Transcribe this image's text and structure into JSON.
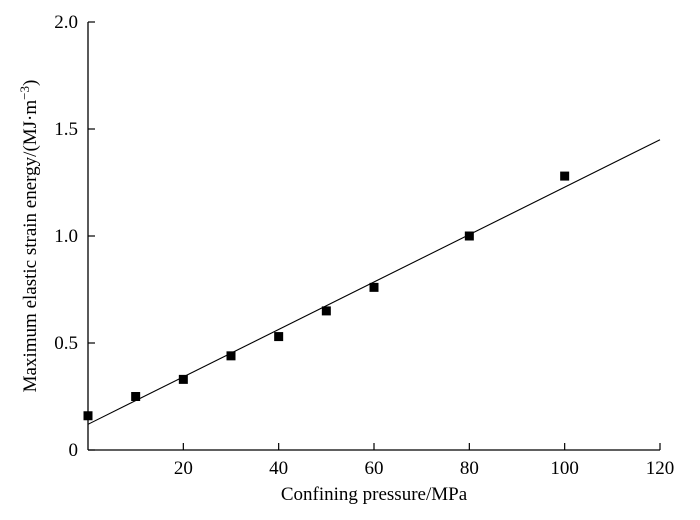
{
  "chart_data": {
    "type": "scatter",
    "title": "",
    "xlabel": "Confining pressure/MPa",
    "ylabel": {
      "main": "Maximum elastic strain energy/(MJ·m",
      "superscript": "−3",
      "close": ")"
    },
    "xlim": [
      0,
      120
    ],
    "ylim": [
      0,
      2.0
    ],
    "x_ticks": [
      20,
      40,
      60,
      80,
      100,
      120
    ],
    "x_tick_labels": [
      "20",
      "40",
      "60",
      "80",
      "100",
      "120"
    ],
    "y_ticks": [
      0,
      0.5,
      1.0,
      1.5,
      2.0
    ],
    "y_tick_labels": [
      "0",
      "0.5",
      "1.0",
      "1.5",
      "2.0"
    ],
    "grid": false,
    "series": [
      {
        "x": [
          0,
          10,
          20,
          30,
          40,
          50,
          60,
          80,
          100
        ],
        "y": [
          0.16,
          0.25,
          0.33,
          0.44,
          0.53,
          0.65,
          0.76,
          1.0,
          1.28
        ]
      }
    ],
    "fit_line": {
      "x": [
        0,
        120
      ],
      "y": [
        0.12,
        1.45
      ]
    }
  }
}
